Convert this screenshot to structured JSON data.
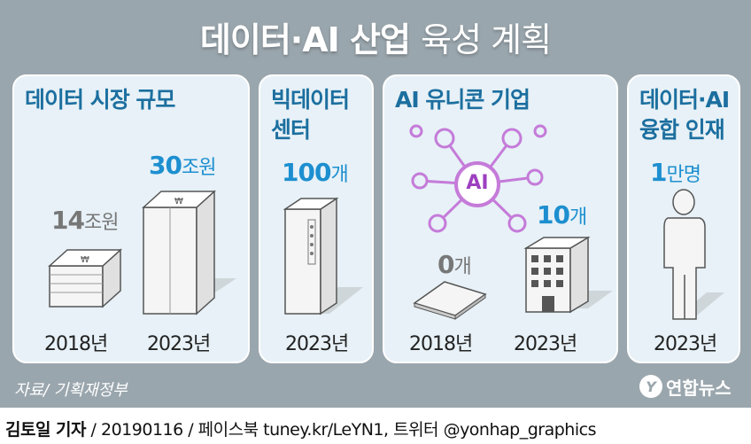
{
  "title": {
    "bold": "데이터·AI 산업",
    "thin": "육성 계획"
  },
  "panels": {
    "market": {
      "title": "데이터 시장 규모",
      "v2018": {
        "num": "14",
        "unit": "조원"
      },
      "v2023": {
        "num": "30",
        "unit": "조원"
      },
      "y1": "2018년",
      "y2": "2023년"
    },
    "bigdata": {
      "title1": "빅데이터",
      "title2": "센터",
      "v2023": {
        "num": "100",
        "unit": "개"
      },
      "y": "2023년"
    },
    "unicorn": {
      "title": "AI 유니콘 기업",
      "ai_label": "AI",
      "v2018": {
        "num": "0",
        "unit": "개"
      },
      "v2023": {
        "num": "10",
        "unit": "개"
      },
      "y1": "2018년",
      "y2": "2023년"
    },
    "talent": {
      "title1": "데이터·AI",
      "title2": "융합 인재",
      "v2023": {
        "num": "1",
        "unit": "만명"
      },
      "y": "2023년"
    }
  },
  "source": "자료/ 기획재정부",
  "logo": {
    "mark": "Y",
    "text": "연합뉴스"
  },
  "byline": {
    "author": "김토일 기자",
    "rest": " / 20190116 / 페이스북 tuney.kr/LeYN1, 트위터 @yonhap_graphics"
  },
  "colors": {
    "frame": "#9aa6ad",
    "panel": "#e7f1f7",
    "accent": "#1d8fd0",
    "heading": "#1c6f9f"
  }
}
